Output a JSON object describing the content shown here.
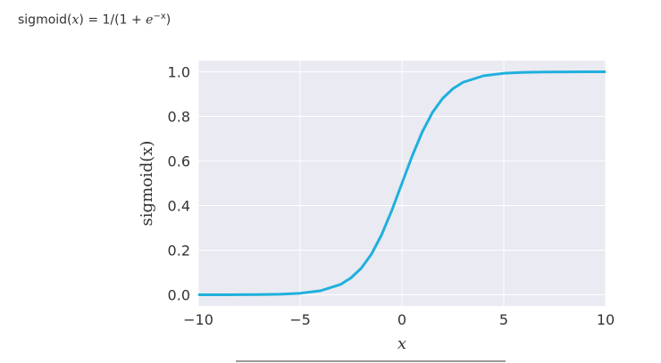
{
  "caption": {
    "prefix": "sigmoid(",
    "x1": "x",
    "mid": ") = 1/(1 + ",
    "e": "e",
    "exp": "−x",
    "suffix": ")"
  },
  "chart_data": {
    "type": "line",
    "xlabel": "x",
    "ylabel": "sigmoid(x)",
    "xlim": [
      -10,
      10
    ],
    "ylim": [
      -0.05,
      1.05
    ],
    "xticks": [
      -10,
      -5,
      0,
      5,
      10
    ],
    "xtick_labels": [
      "−10",
      "−5",
      "0",
      "5",
      "10"
    ],
    "yticks": [
      0.0,
      0.2,
      0.4,
      0.6,
      0.8,
      1.0
    ],
    "ytick_labels": [
      "0.0",
      "0.2",
      "0.4",
      "0.6",
      "0.8",
      "1.0"
    ],
    "grid": true,
    "colors": {
      "line": "#1fb0dd",
      "plot_bg": "#eaeaf2",
      "grid": "#ffffff"
    },
    "series": [
      {
        "x": [
          -10,
          -9,
          -8,
          -7,
          -6,
          -5,
          -4,
          -3,
          -2.5,
          -2,
          -1.5,
          -1,
          -0.5,
          0,
          0.5,
          1,
          1.5,
          2,
          2.5,
          3,
          4,
          5,
          6,
          7,
          8,
          9,
          10
        ],
        "values": [
          5e-05,
          0.00012,
          0.00034,
          0.0009,
          0.0025,
          0.0067,
          0.018,
          0.047,
          0.076,
          0.119,
          0.182,
          0.269,
          0.378,
          0.5,
          0.622,
          0.731,
          0.818,
          0.881,
          0.924,
          0.953,
          0.982,
          0.9933,
          0.9975,
          0.9991,
          0.99966,
          0.99988,
          0.99995
        ]
      }
    ]
  }
}
